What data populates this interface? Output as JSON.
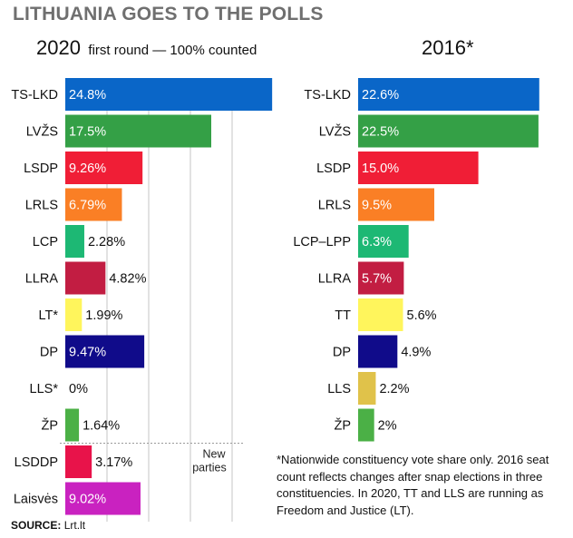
{
  "title": "LITHUANIA GOES TO THE POLLS",
  "colors": {
    "TS-LKD": "#0a66c8",
    "LVZS": "#34a046",
    "LSDP": "#f01e36",
    "LRLS": "#fa7f25",
    "LCP": "#1db874",
    "LLRA": "#c21d42",
    "LT": "#fff55c",
    "DP": "#100b8a",
    "LLS": "#e0c24a",
    "ZP": "#4bb046",
    "LSDDP": "#e8134a",
    "Laisves": "#c922c0",
    "grid": "#c4c4c4",
    "divider": "#9a9a9a"
  },
  "chart_data": [
    {
      "type": "bar",
      "orientation": "horizontal",
      "title": "2020",
      "subtitle": "first round — 100% counted",
      "categories": [
        "TS-LKD",
        "LVŽS",
        "LSDP",
        "LRLS",
        "LCP",
        "LLRA",
        "LT*",
        "DP",
        "LLS*",
        "ŽP",
        "LSDDP",
        "Laisvės"
      ],
      "values": [
        24.8,
        17.5,
        9.26,
        6.79,
        2.28,
        4.82,
        1.99,
        9.47,
        0,
        1.64,
        3.17,
        9.02
      ],
      "value_labels": [
        "24.8%",
        "17.5%",
        "9.26%",
        "6.79%",
        "2.28%",
        "4.82%",
        "1.99%",
        "9.47%",
        "0%",
        "1.64%",
        "3.17%",
        "9.02%"
      ],
      "color_keys": [
        "TS-LKD",
        "LVZS",
        "LSDP",
        "LRLS",
        "LCP",
        "LLRA",
        "LT",
        "DP",
        "LLS",
        "ZP",
        "LSDDP",
        "Laisves"
      ],
      "annotation": {
        "text_line1": "New",
        "text_line2": "parties",
        "before_category": "LSDDP"
      },
      "xlim": [
        0,
        25
      ],
      "grid": true,
      "xlabel": "",
      "ylabel": ""
    },
    {
      "type": "bar",
      "orientation": "horizontal",
      "title": "2016*",
      "categories": [
        "TS-LKD",
        "LVŽS",
        "LSDP",
        "LRLS",
        "LCP–LPP",
        "LLRA",
        "TT",
        "DP",
        "LLS",
        "ŽP"
      ],
      "values": [
        22.6,
        22.5,
        15.0,
        9.5,
        6.3,
        5.7,
        5.6,
        4.9,
        2.2,
        2
      ],
      "value_labels": [
        "22.6%",
        "22.5%",
        "15.0%",
        "9.5%",
        "6.3%",
        "5.7%",
        "5.6%",
        "4.9%",
        "2.2%",
        "2%"
      ],
      "color_keys": [
        "TS-LKD",
        "LVZS",
        "LSDP",
        "LRLS",
        "LCP",
        "LLRA",
        "LT",
        "DP",
        "LLS",
        "ZP"
      ],
      "xlim": [
        0,
        25
      ],
      "grid": false,
      "xlabel": "",
      "ylabel": ""
    }
  ],
  "note": "*Nationwide constituency vote share only. 2016 seat count reflects changes after snap elections in three constituencies. In 2020, TT and LLS are running as Freedom and Justice (LT).",
  "source": {
    "label": "SOURCE:",
    "text": "Lrt.lt"
  }
}
